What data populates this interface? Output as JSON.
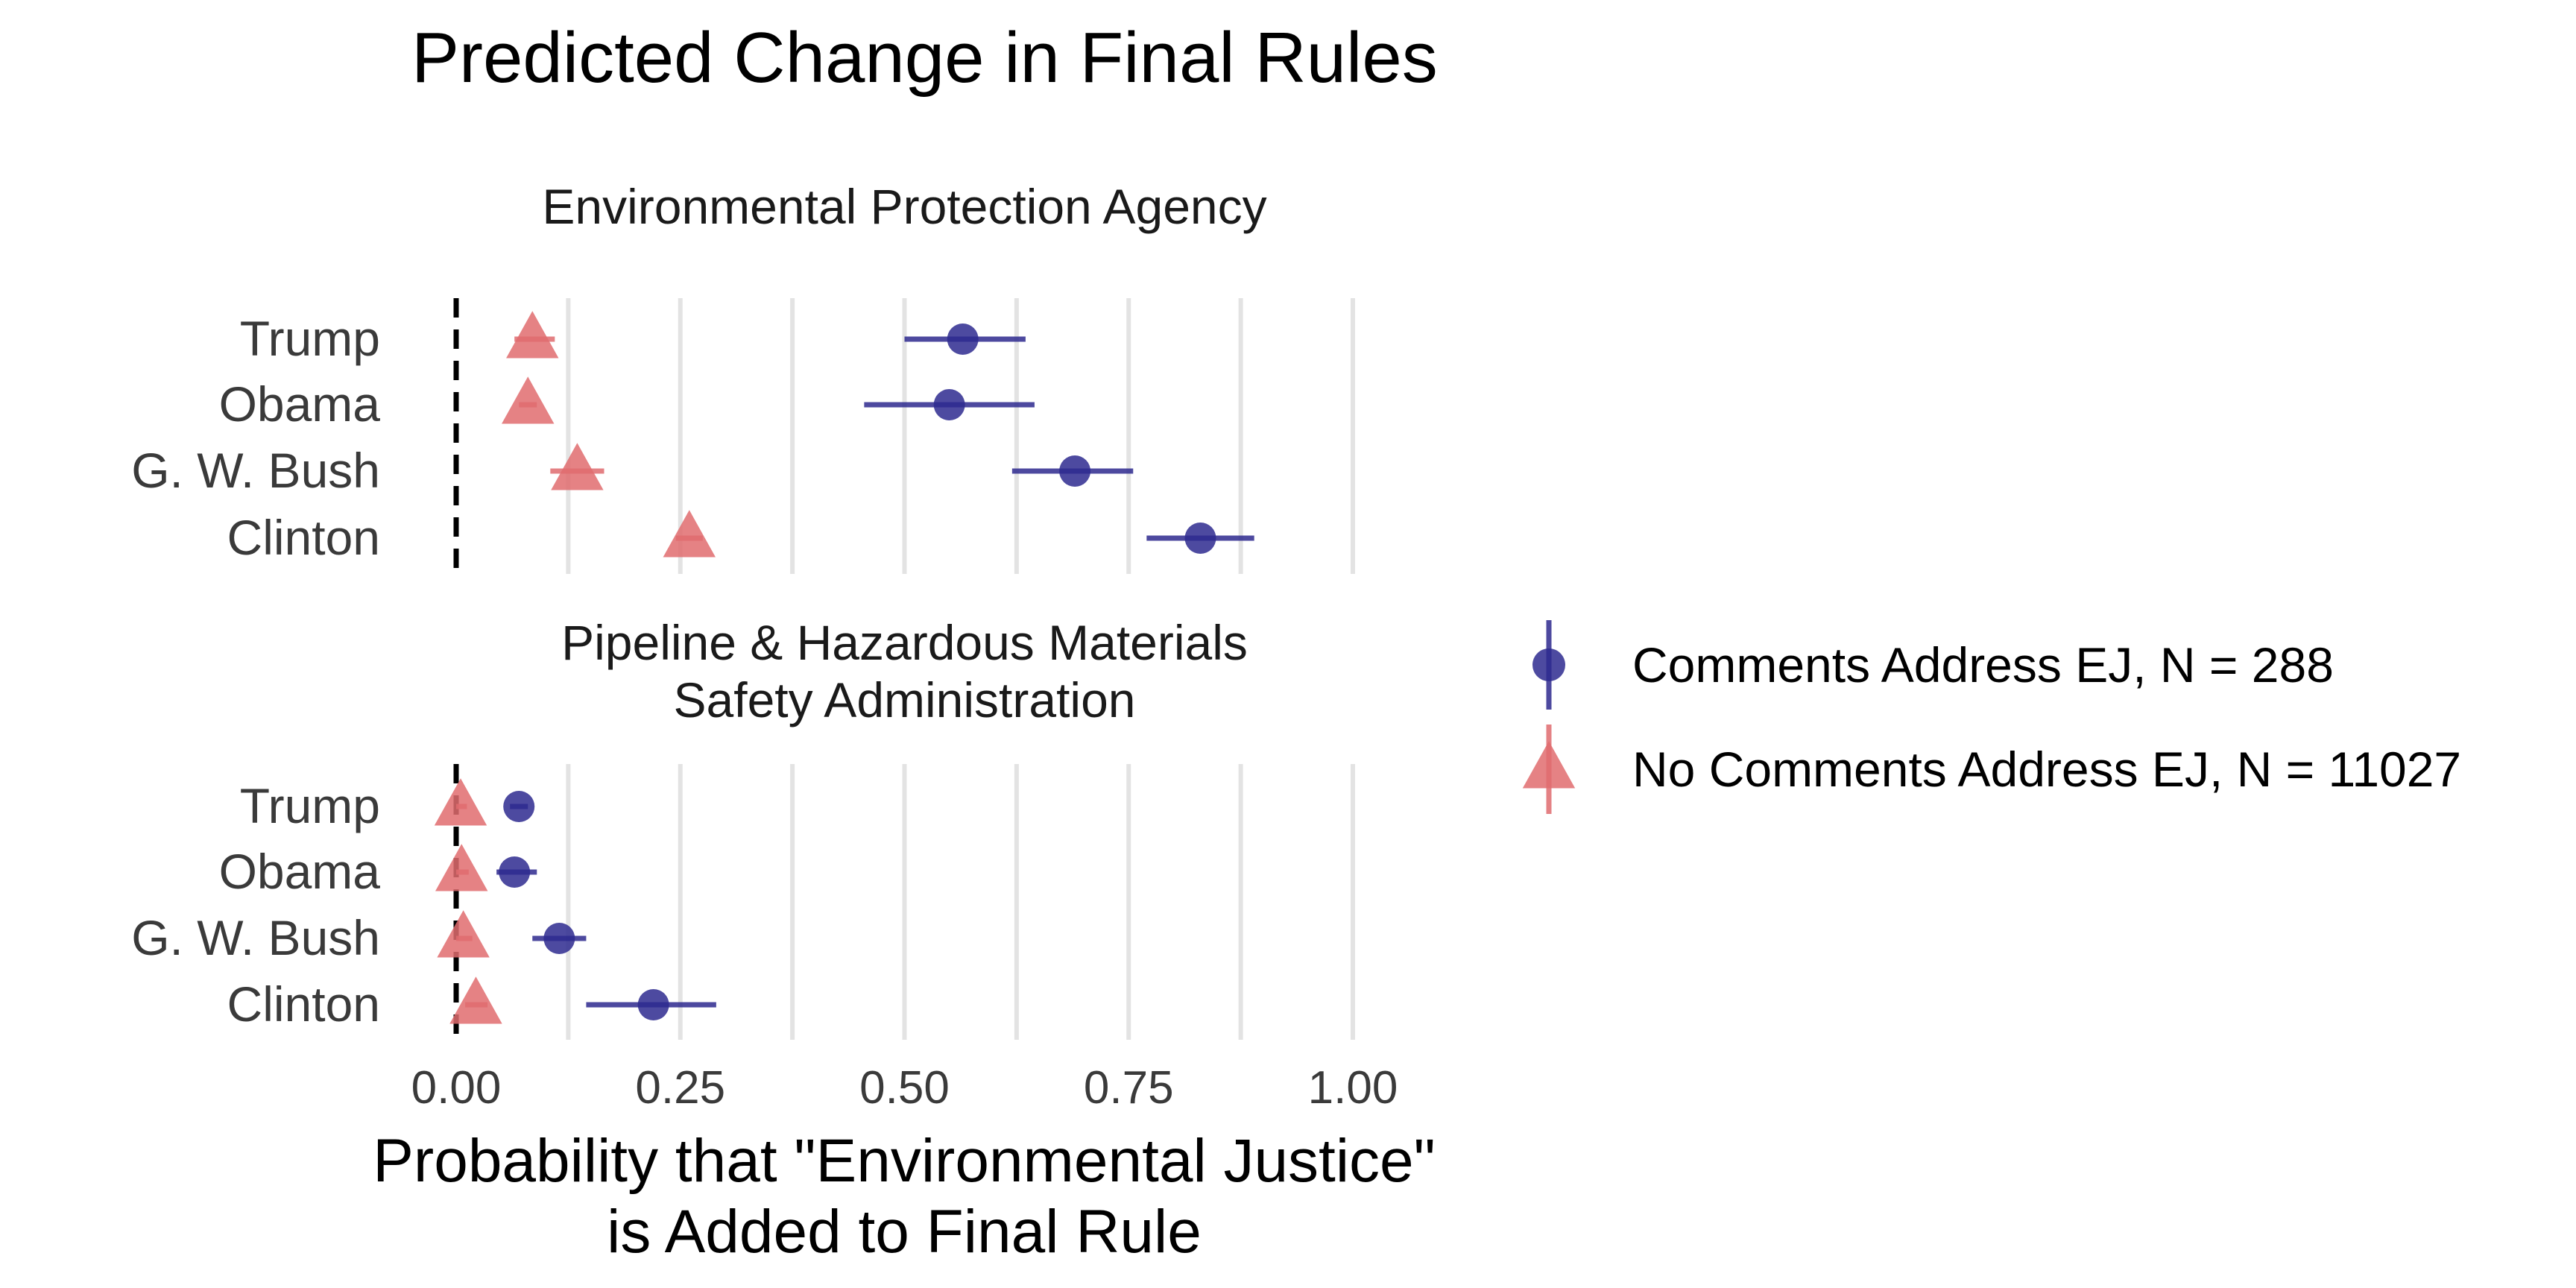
{
  "chart_data": {
    "type": "scatter",
    "title": "Predicted Change in Final Rules",
    "xlabel_lines": [
      "Probability that \"Environmental Justice\"",
      "is Added to Final Rule"
    ],
    "xlim": [
      0,
      1
    ],
    "x_ticks": [
      0,
      0.25,
      0.5,
      0.75,
      1.0
    ],
    "x_tick_labels": [
      "0.00",
      "0.25",
      "0.50",
      "0.75",
      "1.00"
    ],
    "reference_line_x": 0,
    "categories": [
      "Trump",
      "Obama",
      "G. W. Bush",
      "Clinton"
    ],
    "panels": [
      {
        "title_lines": [
          "Environmental Protection Agency"
        ],
        "series": [
          {
            "name": "Comments Address EJ, N = 288",
            "marker": "circle",
            "color": "#2E2A8F",
            "points": [
              {
                "category": "Trump",
                "x": 0.565,
                "lo": 0.5,
                "hi": 0.635
              },
              {
                "category": "Obama",
                "x": 0.55,
                "lo": 0.455,
                "hi": 0.645
              },
              {
                "category": "G. W. Bush",
                "x": 0.69,
                "lo": 0.62,
                "hi": 0.755
              },
              {
                "category": "Clinton",
                "x": 0.83,
                "lo": 0.77,
                "hi": 0.89
              }
            ]
          },
          {
            "name": "No Comments Address EJ, N = 11027",
            "marker": "triangle",
            "color": "#E06C6F",
            "points": [
              {
                "category": "Trump",
                "x": 0.085,
                "lo": 0.065,
                "hi": 0.11
              },
              {
                "category": "Obama",
                "x": 0.08,
                "lo": 0.07,
                "hi": 0.09
              },
              {
                "category": "G. W. Bush",
                "x": 0.135,
                "lo": 0.105,
                "hi": 0.165
              },
              {
                "category": "Clinton",
                "x": 0.26,
                "lo": 0.245,
                "hi": 0.275
              }
            ]
          }
        ]
      },
      {
        "title_lines": [
          "Pipeline & Hazardous Materials",
          "Safety Administration"
        ],
        "series": [
          {
            "name": "Comments Address EJ, N = 288",
            "marker": "circle",
            "color": "#2E2A8F",
            "points": [
              {
                "category": "Trump",
                "x": 0.07,
                "lo": 0.06,
                "hi": 0.08
              },
              {
                "category": "Obama",
                "x": 0.065,
                "lo": 0.045,
                "hi": 0.09
              },
              {
                "category": "G. W. Bush",
                "x": 0.115,
                "lo": 0.085,
                "hi": 0.145
              },
              {
                "category": "Clinton",
                "x": 0.22,
                "lo": 0.145,
                "hi": 0.29
              }
            ]
          },
          {
            "name": "No Comments Address EJ, N = 11027",
            "marker": "triangle",
            "color": "#E06C6F",
            "points": [
              {
                "category": "Trump",
                "x": 0.005,
                "lo": 0.0,
                "hi": 0.012
              },
              {
                "category": "Obama",
                "x": 0.006,
                "lo": 0.0,
                "hi": 0.014
              },
              {
                "category": "G. W. Bush",
                "x": 0.008,
                "lo": 0.0,
                "hi": 0.018
              },
              {
                "category": "Clinton",
                "x": 0.022,
                "lo": 0.01,
                "hi": 0.035
              }
            ]
          }
        ]
      }
    ],
    "legend": {
      "placement": "right",
      "entries": [
        {
          "label": "Comments Address EJ, N = 288",
          "marker": "circle",
          "color": "#2E2A8F"
        },
        {
          "label": "No Comments Address EJ, N = 11027",
          "marker": "triangle",
          "color": "#E06C6F"
        }
      ]
    },
    "grid": "vertical"
  }
}
